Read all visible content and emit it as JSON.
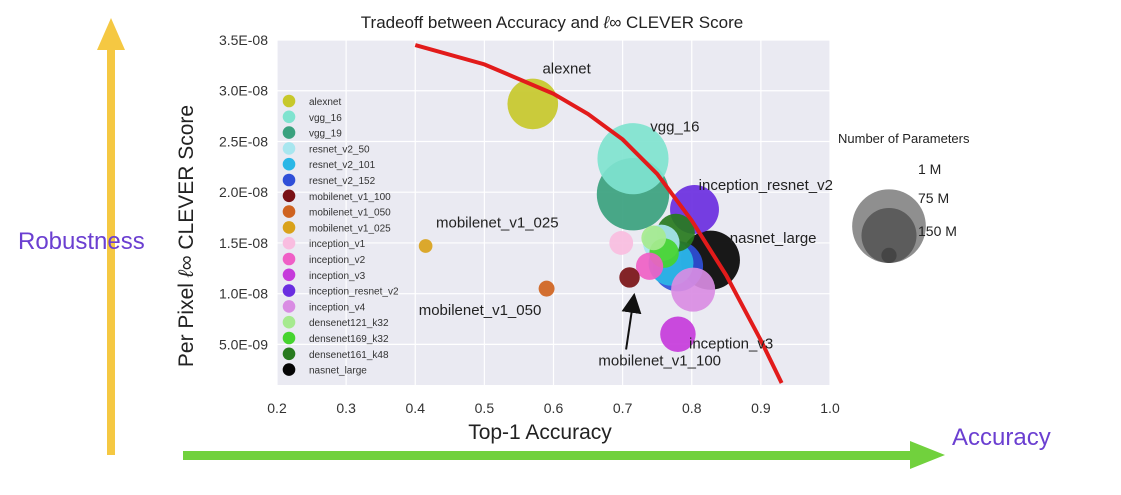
{
  "chart_data": {
    "type": "scatter",
    "title": "Tradeoff between Accuracy and",
    "title_symbol": "ℓ∞",
    "title_suffix": "CLEVER Score",
    "xlabel": "Top-1 Accuracy",
    "ylabel_prefix": "Per Pixel",
    "ylabel_symbol": "ℓ∞",
    "ylabel_suffix": "CLEVER Score",
    "xlim": [
      0.2,
      1.0
    ],
    "ylim": [
      1e-09,
      3.5e-08
    ],
    "x_ticks": [
      {
        "v": 0.2,
        "label": "0.2"
      },
      {
        "v": 0.3,
        "label": "0.3"
      },
      {
        "v": 0.4,
        "label": "0.4"
      },
      {
        "v": 0.5,
        "label": "0.5"
      },
      {
        "v": 0.6,
        "label": "0.6"
      },
      {
        "v": 0.7,
        "label": "0.7"
      },
      {
        "v": 0.8,
        "label": "0.8"
      },
      {
        "v": 0.9,
        "label": "0.9"
      },
      {
        "v": 1.0,
        "label": "1.0"
      }
    ],
    "y_ticks": [
      {
        "v": 5e-09,
        "label": "5.0E-09"
      },
      {
        "v": 1e-08,
        "label": "1.0E-08"
      },
      {
        "v": 1.5e-08,
        "label": "1.5E-08"
      },
      {
        "v": 2e-08,
        "label": "2.0E-08"
      },
      {
        "v": 2.5e-08,
        "label": "2.5E-08"
      },
      {
        "v": 3e-08,
        "label": "3.0E-08"
      },
      {
        "v": 3.5e-08,
        "label": "3.5E-08"
      }
    ],
    "grid": true,
    "series": [
      {
        "name": "alexnet",
        "color": "#c7c82b",
        "x": 0.57,
        "y": 2.87e-08,
        "params_m": 61
      },
      {
        "name": "vgg_16",
        "color": "#7fe3cf",
        "x": 0.715,
        "y": 2.33e-08,
        "params_m": 138
      },
      {
        "name": "vgg_19",
        "color": "#3aa17e",
        "x": 0.715,
        "y": 1.98e-08,
        "params_m": 144
      },
      {
        "name": "resnet_v2_50",
        "color": "#a8e6ef",
        "x": 0.756,
        "y": 1.5e-08,
        "params_m": 26
      },
      {
        "name": "resnet_v2_101",
        "color": "#2ab7e6",
        "x": 0.77,
        "y": 1.3e-08,
        "params_m": 45
      },
      {
        "name": "resnet_v2_152",
        "color": "#2f4fd8",
        "x": 0.78,
        "y": 1.27e-08,
        "params_m": 60
      },
      {
        "name": "mobilenet_v1_100",
        "color": "#7a1216",
        "x": 0.71,
        "y": 1.16e-08,
        "params_m": 4
      },
      {
        "name": "mobilenet_v1_050",
        "color": "#cf6320",
        "x": 0.59,
        "y": 1.05e-08,
        "params_m": 1.3
      },
      {
        "name": "mobilenet_v1_025",
        "color": "#d9a21b",
        "x": 0.415,
        "y": 1.47e-08,
        "params_m": 0.5
      },
      {
        "name": "inception_v1",
        "color": "#f9bde0",
        "x": 0.698,
        "y": 1.5e-08,
        "params_m": 7
      },
      {
        "name": "inception_v2",
        "color": "#ef5fc6",
        "x": 0.739,
        "y": 1.27e-08,
        "params_m": 11
      },
      {
        "name": "inception_v3",
        "color": "#c63bdb",
        "x": 0.78,
        "y": 6e-09,
        "params_m": 24
      },
      {
        "name": "inception_resnet_v2",
        "color": "#6a2ee0",
        "x": 0.804,
        "y": 1.83e-08,
        "params_m": 56
      },
      {
        "name": "inception_v4",
        "color": "#d98ce3",
        "x": 0.802,
        "y": 1.04e-08,
        "params_m": 43
      },
      {
        "name": "densenet121_k32",
        "color": "#a6ea8f",
        "x": 0.745,
        "y": 1.55e-08,
        "params_m": 8
      },
      {
        "name": "densenet169_k32",
        "color": "#46d42f",
        "x": 0.76,
        "y": 1.4e-08,
        "params_m": 14
      },
      {
        "name": "densenet161_k48",
        "color": "#277a1e",
        "x": 0.777,
        "y": 1.6e-08,
        "params_m": 29
      },
      {
        "name": "nasnet_large",
        "color": "#050505",
        "x": 0.827,
        "y": 1.33e-08,
        "params_m": 89
      }
    ],
    "annotations": [
      {
        "text": "alexnet",
        "x": 0.584,
        "y": 3.17e-08
      },
      {
        "text": "vgg_16",
        "x": 0.74,
        "y": 2.6e-08
      },
      {
        "text": "inception_resnet_v2",
        "x": 0.81,
        "y": 2.02e-08
      },
      {
        "text": "mobilenet_v1_025",
        "x": 0.43,
        "y": 1.65e-08
      },
      {
        "text": "nasnet_large",
        "x": 0.855,
        "y": 1.5e-08
      },
      {
        "text": "mobilenet_v1_050",
        "x": 0.405,
        "y": 7.9e-09
      },
      {
        "text": "mobilenet_v1_100",
        "x": 0.665,
        "y": 2.9e-09
      },
      {
        "text": "inception_v3",
        "x": 0.796,
        "y": 4.6e-09
      }
    ],
    "arrow": {
      "from_x": 0.705,
      "from_y": 4.5e-09,
      "to_x": 0.715,
      "to_y": 9.1e-09
    },
    "tradeoff_curve": [
      [
        0.4,
        3.45e-08
      ],
      [
        0.5,
        3.26e-08
      ],
      [
        0.6,
        2.97e-08
      ],
      [
        0.65,
        2.77e-08
      ],
      [
        0.7,
        2.52e-08
      ],
      [
        0.75,
        2.18e-08
      ],
      [
        0.8,
        1.72e-08
      ],
      [
        0.85,
        1.18e-08
      ],
      [
        0.9,
        5.4e-09
      ],
      [
        0.93,
        1.2e-09
      ]
    ],
    "size_legend": {
      "title": "Number of Parameters",
      "items": [
        {
          "label": "1 M",
          "params_m": 1
        },
        {
          "label": "75 M",
          "params_m": 75
        },
        {
          "label": "150 M",
          "params_m": 150
        }
      ]
    }
  },
  "overlay": {
    "robustness_label": "Robustness",
    "accuracy_label": "Accuracy"
  },
  "colors": {
    "plot_bg": "#eaeaf2",
    "grid": "#ffffff",
    "curve": "#e21b1b",
    "robustness_arrow": "#f5c842",
    "accuracy_arrow": "#71d13d",
    "overlay_text": "#6b3fd1"
  }
}
